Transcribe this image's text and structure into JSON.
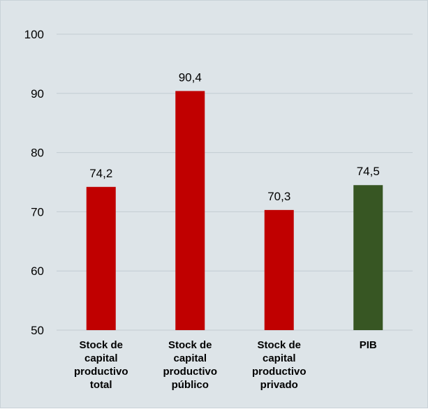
{
  "chart_data": {
    "type": "bar",
    "categories": [
      [
        "Stock de",
        "capital",
        "productivo",
        "total"
      ],
      [
        "Stock de",
        "capital",
        "productivo",
        "público"
      ],
      [
        "Stock de",
        "capital",
        "productivo",
        "privado"
      ],
      [
        "PIB"
      ]
    ],
    "values": [
      74.2,
      90.4,
      70.3,
      74.5
    ],
    "value_labels": [
      "74,2",
      "90,4",
      "70,3",
      "74,5"
    ],
    "bar_colors": [
      "#c00000",
      "#c00000",
      "#c00000",
      "#375623"
    ],
    "ylim": [
      50,
      100
    ],
    "yticks": [
      50,
      60,
      70,
      80,
      90,
      100
    ],
    "grid": true,
    "legend": "none"
  }
}
